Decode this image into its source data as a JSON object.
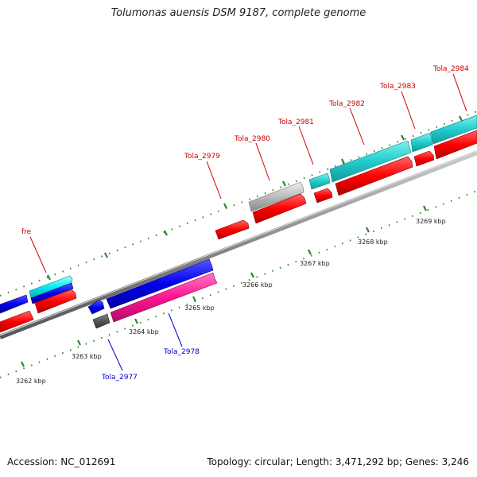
{
  "title": "Tolumonas auensis DSM 9187, complete genome",
  "footer": {
    "accession": "Accession: NC_012691",
    "summary": "Topology: circular; Length: 3,471,292 bp; Genes: 3,246"
  },
  "scale_labels": [
    "3262 kbp",
    "3263 kbp",
    "3264 kbp",
    "3265 kbp",
    "3266 kbp",
    "3267 kbp",
    "3268 kbp",
    "3269 kbp"
  ],
  "gene_labels": {
    "fre": "fre",
    "tola2977": "Tola_2977",
    "tola2978": "Tola_2978",
    "tola2979": "Tola_2979",
    "tola2980": "Tola_2980",
    "tola2981": "Tola_2981",
    "tola2982": "Tola_2982",
    "tola2983": "Tola_2983",
    "tola2984": "Tola_2984"
  },
  "colors": {
    "forward_label": "#cc0000",
    "reverse_label": "#0000cc",
    "backbone": "#888888",
    "tick": "#2a8a2a",
    "cds_red": "#ff1a1a",
    "cds_blue": "#1a1aee",
    "cds_cyan": "#33cccc",
    "cds_pink": "#ff2299",
    "cds_gray": "#bbbbbb",
    "cds_dark": "#555555"
  }
}
